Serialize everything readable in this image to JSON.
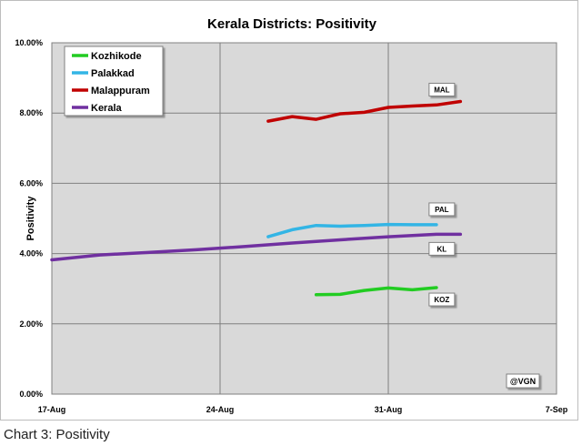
{
  "caption": "Chart 3: Positivity",
  "chart_data": {
    "type": "line",
    "title": "Kerala Districts: Positivity",
    "xlabel": "",
    "ylabel": "Positivity",
    "x_ticks": [
      "17-Aug",
      "24-Aug",
      "31-Aug",
      "7-Sep"
    ],
    "xlim": [
      "2021-08-17",
      "2021-09-07"
    ],
    "y_ticks": [
      "0.00%",
      "2.00%",
      "4.00%",
      "6.00%",
      "8.00%",
      "10.00%"
    ],
    "ylim": [
      0,
      10
    ],
    "grid": true,
    "legend_position": "top-left",
    "series": [
      {
        "name": "Kozhikode",
        "color": "#22cc22",
        "end_label": "KOZ",
        "points": [
          {
            "x": "2021-08-28",
            "y": 2.83
          },
          {
            "x": "2021-08-29",
            "y": 2.84
          },
          {
            "x": "2021-08-30",
            "y": 2.95
          },
          {
            "x": "2021-08-31",
            "y": 3.02
          },
          {
            "x": "2021-09-01",
            "y": 2.97
          },
          {
            "x": "2021-09-02",
            "y": 3.03
          }
        ]
      },
      {
        "name": "Palakkad",
        "color": "#33b5e5",
        "end_label": "PAL",
        "points": [
          {
            "x": "2021-08-26",
            "y": 4.48
          },
          {
            "x": "2021-08-27",
            "y": 4.68
          },
          {
            "x": "2021-08-28",
            "y": 4.8
          },
          {
            "x": "2021-08-29",
            "y": 4.78
          },
          {
            "x": "2021-08-30",
            "y": 4.8
          },
          {
            "x": "2021-08-31",
            "y": 4.83
          },
          {
            "x": "2021-09-01",
            "y": 4.82
          },
          {
            "x": "2021-09-02",
            "y": 4.82
          }
        ]
      },
      {
        "name": "Malappuram",
        "color": "#c00000",
        "end_label": "MAL",
        "points": [
          {
            "x": "2021-08-26",
            "y": 7.77
          },
          {
            "x": "2021-08-27",
            "y": 7.9
          },
          {
            "x": "2021-08-28",
            "y": 7.82
          },
          {
            "x": "2021-08-29",
            "y": 7.98
          },
          {
            "x": "2021-08-30",
            "y": 8.02
          },
          {
            "x": "2021-08-31",
            "y": 8.16
          },
          {
            "x": "2021-09-01",
            "y": 8.2
          },
          {
            "x": "2021-09-02",
            "y": 8.23
          },
          {
            "x": "2021-09-03",
            "y": 8.33
          }
        ]
      },
      {
        "name": "Kerala",
        "color": "#7030a0",
        "end_label": "KL",
        "points": [
          {
            "x": "2021-08-17",
            "y": 3.82
          },
          {
            "x": "2021-08-19",
            "y": 3.96
          },
          {
            "x": "2021-08-21",
            "y": 4.03
          },
          {
            "x": "2021-08-23",
            "y": 4.11
          },
          {
            "x": "2021-08-25",
            "y": 4.2
          },
          {
            "x": "2021-08-27",
            "y": 4.3
          },
          {
            "x": "2021-08-29",
            "y": 4.39
          },
          {
            "x": "2021-08-31",
            "y": 4.48
          },
          {
            "x": "2021-09-02",
            "y": 4.55
          },
          {
            "x": "2021-09-03",
            "y": 4.55
          }
        ]
      }
    ],
    "annotations": [
      "@VGN"
    ]
  }
}
